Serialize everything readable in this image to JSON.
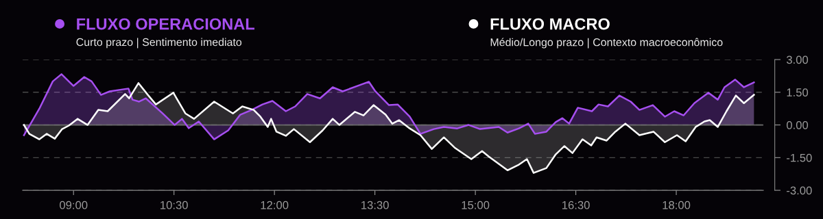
{
  "chart_data": {
    "type": "area",
    "series": [
      {
        "name": "FLUXO OPERACIONAL",
        "color": "#a64ff0",
        "x": [
          8.26,
          8.49,
          8.69,
          8.82,
          9.0,
          9.16,
          9.27,
          9.41,
          9.54,
          9.82,
          9.88,
          9.98,
          10.08,
          10.33,
          10.51,
          10.62,
          10.72,
          10.87,
          11.1,
          11.31,
          11.49,
          11.66,
          11.82,
          11.97,
          12.17,
          12.31,
          12.49,
          12.68,
          12.87,
          13.02,
          13.3,
          13.41,
          13.5,
          13.71,
          13.84,
          14.02,
          14.18,
          14.38,
          14.53,
          14.73,
          14.9,
          15.07,
          15.35,
          15.48,
          15.65,
          15.79,
          15.89,
          16.06,
          16.2,
          16.3,
          16.4,
          16.53,
          16.74,
          16.84,
          16.98,
          17.15,
          17.32,
          17.45,
          17.65,
          17.83,
          17.97,
          18.11,
          18.27,
          18.48,
          18.62,
          18.72,
          18.88,
          19.01,
          19.16
        ],
        "values": [
          -0.47,
          0.75,
          2.0,
          2.33,
          1.79,
          2.2,
          2.0,
          1.38,
          1.54,
          1.67,
          1.16,
          1.07,
          1.22,
          0.53,
          0,
          0.28,
          -0.15,
          0.16,
          -0.66,
          -0.25,
          0.47,
          0.69,
          0.94,
          1.1,
          0.63,
          0.85,
          1.42,
          1.22,
          1.73,
          1.54,
          1.86,
          1.98,
          1.57,
          0.91,
          0.94,
          0.38,
          -0.41,
          -0.19,
          -0.09,
          -0.16,
          0,
          -0.19,
          -0.09,
          -0.35,
          -0.16,
          0.06,
          -0.41,
          -0.31,
          0.13,
          0.31,
          0.06,
          0.79,
          0.63,
          0.94,
          0.85,
          1.35,
          1.07,
          0.69,
          0.91,
          0.38,
          0.63,
          0.44,
          1.0,
          1.48,
          1.16,
          1.73,
          2.08,
          1.73,
          1.95
        ]
      },
      {
        "name": "FLUXO MACRO",
        "color": "#ffffff",
        "x": [
          8.26,
          8.34,
          8.49,
          8.6,
          8.72,
          8.83,
          8.93,
          9.06,
          9.21,
          9.37,
          9.51,
          9.77,
          9.83,
          9.97,
          10.11,
          10.23,
          10.49,
          10.67,
          10.8,
          11.1,
          11.38,
          11.52,
          11.69,
          11.79,
          11.9,
          11.95,
          12.03,
          12.17,
          12.29,
          12.53,
          12.72,
          12.87,
          12.97,
          13.2,
          13.33,
          13.48,
          13.66,
          13.76,
          13.86,
          14.02,
          14.18,
          14.35,
          14.53,
          14.69,
          14.94,
          15.1,
          15.2,
          15.48,
          15.65,
          15.77,
          15.87,
          16.06,
          16.2,
          16.33,
          16.45,
          16.6,
          16.73,
          16.81,
          16.96,
          17.09,
          17.24,
          17.45,
          17.66,
          17.83,
          18.01,
          18.14,
          18.29,
          18.42,
          18.5,
          18.62,
          18.75,
          18.89,
          19.01,
          19.16
        ],
        "values": [
          0,
          -0.41,
          -0.66,
          -0.41,
          -0.63,
          -0.19,
          -0.03,
          0.28,
          0,
          0.69,
          0.63,
          1.42,
          1.22,
          1.92,
          1.38,
          0.94,
          1.48,
          0.53,
          0.28,
          1.07,
          0.53,
          0.85,
          0.69,
          0.38,
          -0.09,
          0.28,
          -0.31,
          -0.5,
          -0.19,
          -0.79,
          -0.25,
          0.28,
          0,
          0.6,
          0.44,
          0.91,
          0.47,
          0.06,
          0.22,
          -0.16,
          -0.47,
          -1.1,
          -0.57,
          -1.04,
          -1.57,
          -1.2,
          -1.45,
          -2.08,
          -1.82,
          -1.57,
          -2.2,
          -1.98,
          -1.35,
          -0.97,
          -1.29,
          -0.66,
          -0.94,
          -0.57,
          -0.72,
          -0.31,
          0.06,
          -0.47,
          -0.31,
          -0.79,
          -0.47,
          -0.75,
          -0.09,
          0.16,
          0.22,
          -0.09,
          0.63,
          1.35,
          1.0,
          1.38
        ]
      }
    ],
    "xlim": [
      8.24,
      19.3
    ],
    "xticks": [
      {
        "value": 9,
        "label": "09:00"
      },
      {
        "value": 10.5,
        "label": "10:30"
      },
      {
        "value": 12,
        "label": "12:00"
      },
      {
        "value": 13.5,
        "label": "13:30"
      },
      {
        "value": 15,
        "label": "15:00"
      },
      {
        "value": 16.5,
        "label": "16:30"
      },
      {
        "value": 18,
        "label": "18:00"
      }
    ],
    "ylim": [
      -3,
      3
    ],
    "yticks": [
      {
        "value": 3,
        "label": "3.00"
      },
      {
        "value": 1.5,
        "label": "1.50"
      },
      {
        "value": 0,
        "label": "0.00"
      },
      {
        "value": -1.5,
        "label": "-1.50"
      },
      {
        "value": -3,
        "label": "-3.00"
      }
    ],
    "grid": "y",
    "ref_lines": [
      {
        "axis": "y",
        "value": 0,
        "color": "#6a6a6a",
        "line_style": "solid"
      }
    ],
    "legend": "top left",
    "annotations": [
      "Curto prazo | Sentimento imediato",
      "Médio/Longo prazo | Contexto macroeconômico"
    ]
  }
}
